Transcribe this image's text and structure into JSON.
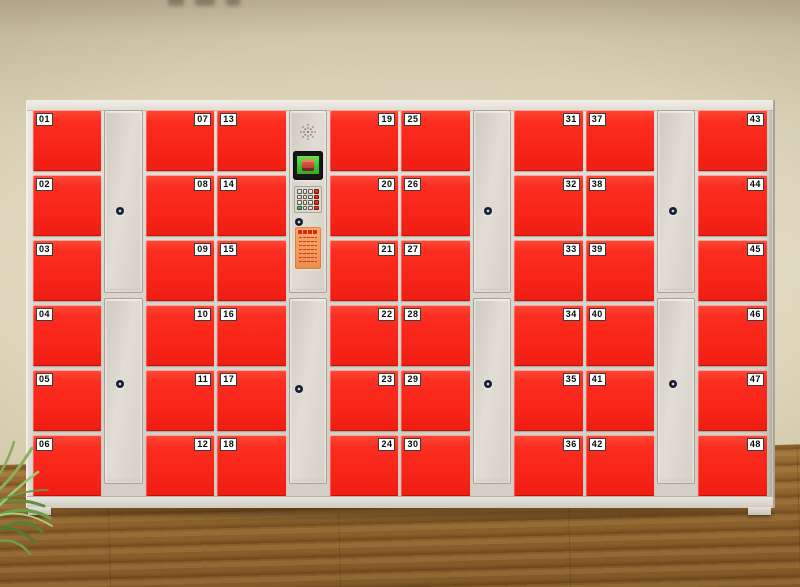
{
  "scene": {
    "description": "Smart electronic locker cabinet with 48 red doors in a room",
    "wall_color": "#ddd4b8",
    "floor_color": "#8a5f2b"
  },
  "cabinet": {
    "body_color": "#d7d2c9",
    "door_color": "#f8251b",
    "plate_text_color": "#0a0a0a",
    "columns": [
      {
        "type": "doors",
        "side": "left",
        "numbers": [
          "01",
          "02",
          "03",
          "04",
          "05",
          "06"
        ]
      },
      {
        "type": "filler"
      },
      {
        "type": "doors",
        "side": "right",
        "numbers": [
          "07",
          "08",
          "09",
          "10",
          "11",
          "12"
        ]
      },
      {
        "type": "doors",
        "side": "left",
        "numbers": [
          "13",
          "14",
          "15",
          "16",
          "17",
          "18"
        ]
      },
      {
        "type": "control"
      },
      {
        "type": "doors",
        "side": "right",
        "numbers": [
          "19",
          "20",
          "21",
          "22",
          "23",
          "24"
        ]
      },
      {
        "type": "doors",
        "side": "left",
        "numbers": [
          "25",
          "26",
          "27",
          "28",
          "29",
          "30"
        ]
      },
      {
        "type": "filler"
      },
      {
        "type": "doors",
        "side": "right",
        "numbers": [
          "31",
          "32",
          "33",
          "34",
          "35",
          "36"
        ]
      },
      {
        "type": "doors",
        "side": "left",
        "numbers": [
          "37",
          "38",
          "39",
          "40",
          "41",
          "42"
        ]
      },
      {
        "type": "filler"
      },
      {
        "type": "doors",
        "side": "right",
        "numbers": [
          "43",
          "44",
          "45",
          "46",
          "47",
          "48"
        ]
      }
    ],
    "control_panel": {
      "components": [
        "speaker-grille-icon",
        "display-screen",
        "keypad",
        "lock",
        "instruction-sticker"
      ],
      "screen_color": "#3ecb33",
      "sticker_color": "#f29a5b",
      "keypad_keys": [
        [
          "key",
          "key",
          "key",
          "red"
        ],
        [
          "key",
          "key",
          "key",
          "red"
        ],
        [
          "key",
          "key",
          "key",
          "red"
        ],
        [
          "green",
          "key",
          "key",
          "red"
        ]
      ]
    },
    "lock_color": "#1c2b4e"
  }
}
